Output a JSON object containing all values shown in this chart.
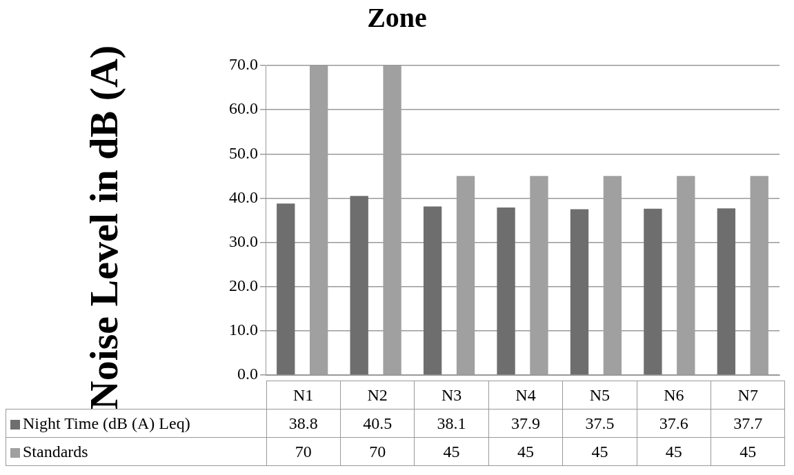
{
  "chart_data": {
    "type": "bar",
    "title": "Zone",
    "ylabel": "Noise Level in dB (A)",
    "categories": [
      "N1",
      "N2",
      "N3",
      "N4",
      "N5",
      "N6",
      "N7"
    ],
    "series": [
      {
        "name": "Night Time (dB (A) Leq)",
        "color": "#6e6e6e",
        "values": [
          38.8,
          40.5,
          38.1,
          37.9,
          37.5,
          37.6,
          37.7
        ]
      },
      {
        "name": "Standards",
        "color": "#a0a0a0",
        "values": [
          70,
          70,
          45,
          45,
          45,
          45,
          45
        ]
      }
    ],
    "ylim": [
      0,
      70
    ],
    "yticks": [
      {
        "value": 0,
        "label": "0.0"
      },
      {
        "value": 10,
        "label": "10.0"
      },
      {
        "value": 20,
        "label": "20.0"
      },
      {
        "value": 30,
        "label": "30.0"
      },
      {
        "value": 40,
        "label": "40.0"
      },
      {
        "value": 50,
        "label": "50.0"
      },
      {
        "value": 60,
        "label": "60.0"
      },
      {
        "value": 70,
        "label": "70.0"
      }
    ],
    "grid": "y",
    "legend": "bottom",
    "data_labels": true
  }
}
